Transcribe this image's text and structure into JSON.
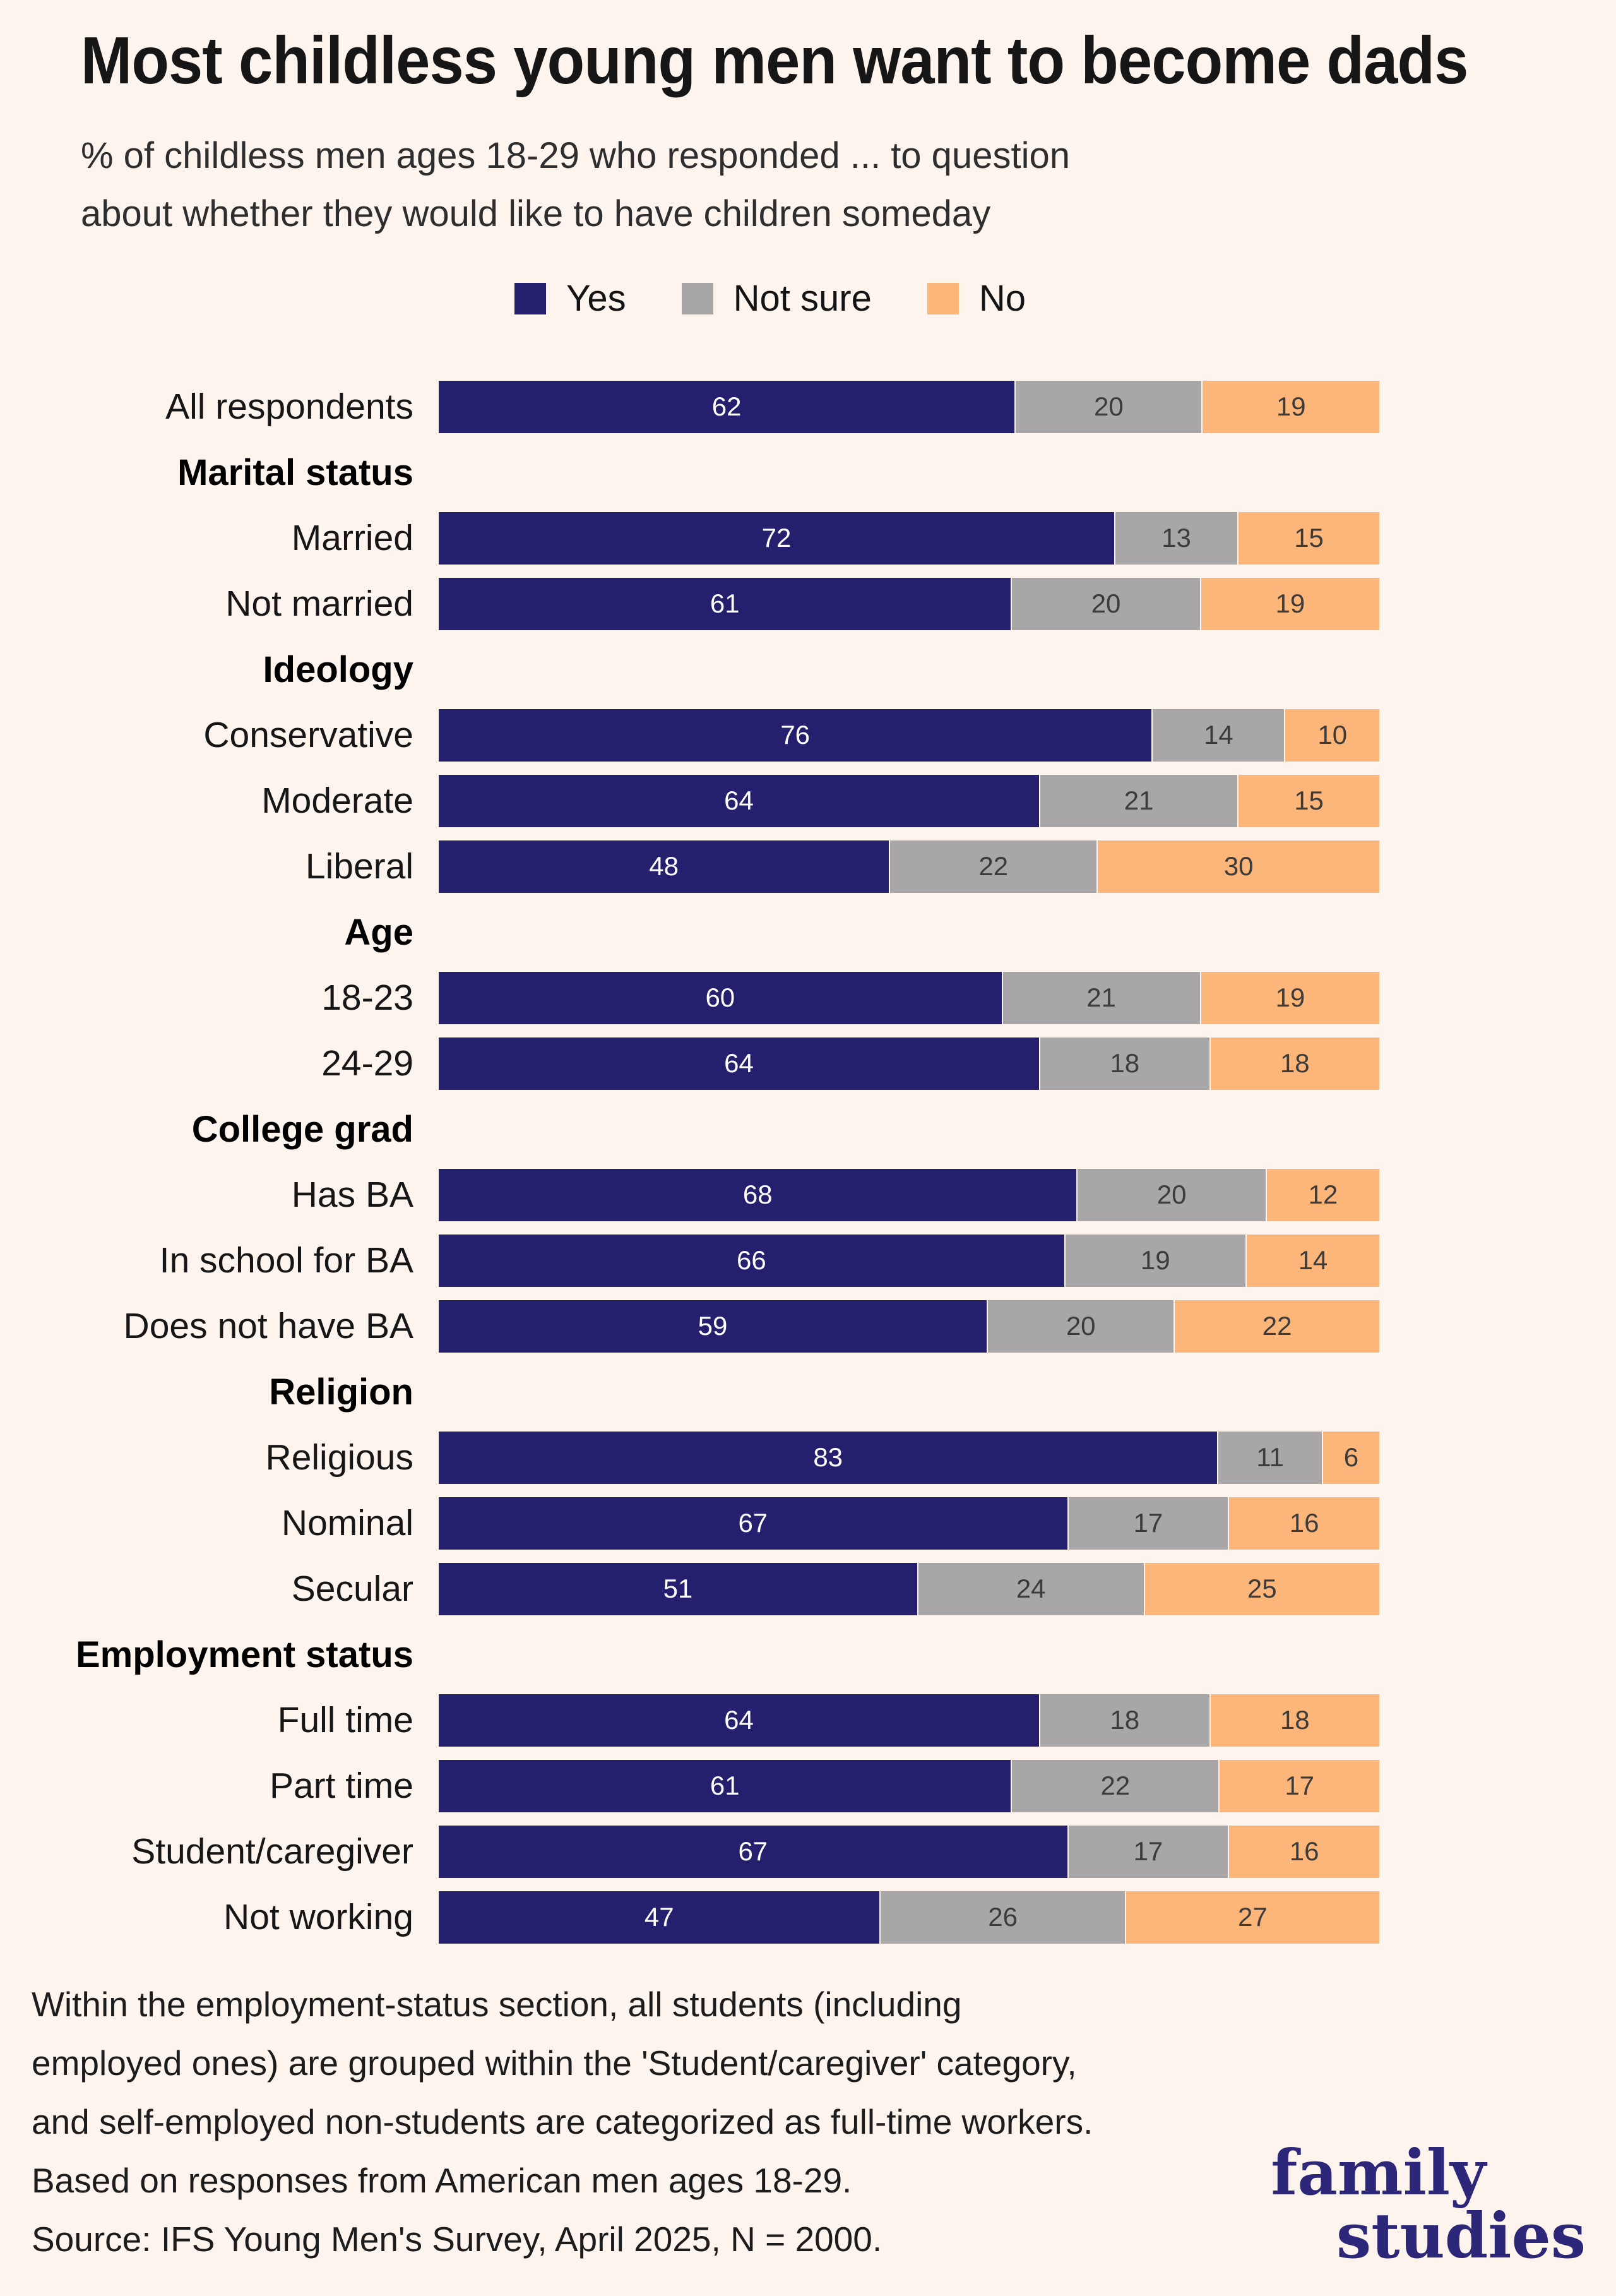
{
  "title": "Most childless young men want to become dads",
  "subtitle_lines": [
    "% of childless men ages 18-29 who responded ... to question",
    "about whether they would like to have children someday"
  ],
  "legend": {
    "items": [
      {
        "label": "Yes",
        "color": "#24206e"
      },
      {
        "label": "Not sure",
        "color": "#a8a6a7"
      },
      {
        "label": "No",
        "color": "#fdb679"
      }
    ]
  },
  "chart_data": {
    "type": "bar",
    "orientation": "horizontal",
    "stacked": true,
    "unit": "%",
    "normalized_to_full_width": true,
    "series_names": [
      "Yes",
      "Not sure",
      "No"
    ],
    "series_colors": {
      "Yes": "#24206e",
      "Not sure": "#a8a6a7",
      "No": "#fdb679"
    },
    "rows": [
      {
        "kind": "bar",
        "label": "All respondents",
        "values": [
          62,
          20,
          19
        ]
      },
      {
        "kind": "section",
        "label": "Marital status"
      },
      {
        "kind": "bar",
        "label": "Married",
        "values": [
          72,
          13,
          15
        ]
      },
      {
        "kind": "bar",
        "label": "Not married",
        "values": [
          61,
          20,
          19
        ]
      },
      {
        "kind": "section",
        "label": "Ideology"
      },
      {
        "kind": "bar",
        "label": "Conservative",
        "values": [
          76,
          14,
          10
        ]
      },
      {
        "kind": "bar",
        "label": "Moderate",
        "values": [
          64,
          21,
          15
        ]
      },
      {
        "kind": "bar",
        "label": "Liberal",
        "values": [
          48,
          22,
          30
        ]
      },
      {
        "kind": "section",
        "label": "Age"
      },
      {
        "kind": "bar",
        "label": "18-23",
        "values": [
          60,
          21,
          19
        ]
      },
      {
        "kind": "bar",
        "label": "24-29",
        "values": [
          64,
          18,
          18
        ]
      },
      {
        "kind": "section",
        "label": "College grad"
      },
      {
        "kind": "bar",
        "label": "Has BA",
        "values": [
          68,
          20,
          12
        ]
      },
      {
        "kind": "bar",
        "label": "In school for BA",
        "values": [
          66,
          19,
          14
        ]
      },
      {
        "kind": "bar",
        "label": "Does not have BA",
        "values": [
          59,
          20,
          22
        ]
      },
      {
        "kind": "section",
        "label": "Religion"
      },
      {
        "kind": "bar",
        "label": "Religious",
        "values": [
          83,
          11,
          6
        ]
      },
      {
        "kind": "bar",
        "label": "Nominal",
        "values": [
          67,
          17,
          16
        ]
      },
      {
        "kind": "bar",
        "label": "Secular",
        "values": [
          51,
          24,
          25
        ]
      },
      {
        "kind": "section",
        "label": "Employment status"
      },
      {
        "kind": "bar",
        "label": "Full time",
        "values": [
          64,
          18,
          18
        ]
      },
      {
        "kind": "bar",
        "label": "Part time",
        "values": [
          61,
          22,
          17
        ]
      },
      {
        "kind": "bar",
        "label": "Student/caregiver",
        "values": [
          67,
          17,
          16
        ]
      },
      {
        "kind": "bar",
        "label": "Not working",
        "values": [
          47,
          26,
          27
        ]
      }
    ]
  },
  "footnote_lines": [
    "Within the employment-status section, all students (including",
    "employed ones) are grouped within the 'Student/caregiver' category,",
    "and self-employed non-students are categorized as full-time workers.",
    "Based on responses from American men ages 18-29.",
    "Source: IFS Young Men's Survey, April 2025, N = 2000."
  ],
  "logo": {
    "line1": "family",
    "line2": "studies",
    "color": "#2c2778"
  },
  "page": {
    "background": "#fdf4ee"
  }
}
